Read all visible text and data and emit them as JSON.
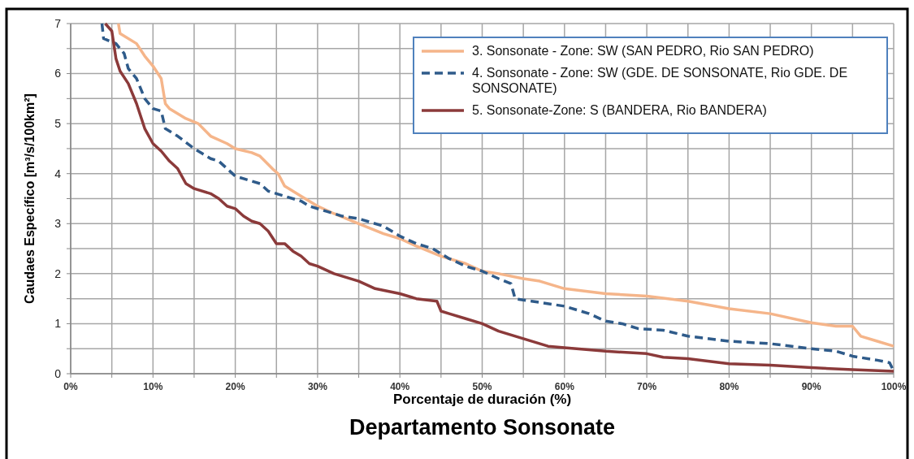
{
  "chart_data": {
    "type": "line",
    "title": "Departamento Sonsonate",
    "xlabel": "Porcentaje de duración (%)",
    "ylabel": "Caudaes Específico [m³/s/100km²]",
    "xlim": [
      0,
      100
    ],
    "ylim": [
      0,
      7
    ],
    "xticks": [
      {
        "value": 0,
        "label": "0%"
      },
      {
        "value": 5,
        "label": null
      },
      {
        "value": 10,
        "label": "10%"
      },
      {
        "value": 15,
        "label": null
      },
      {
        "value": 20,
        "label": "20%"
      },
      {
        "value": 25,
        "label": null
      },
      {
        "value": 30,
        "label": "30%"
      },
      {
        "value": 35,
        "label": null
      },
      {
        "value": 40,
        "label": "40%"
      },
      {
        "value": 45,
        "label": null
      },
      {
        "value": 50,
        "label": "50%"
      },
      {
        "value": 55,
        "label": null
      },
      {
        "value": 60,
        "label": "60%"
      },
      {
        "value": 65,
        "label": null
      },
      {
        "value": 70,
        "label": "70%"
      },
      {
        "value": 75,
        "label": null
      },
      {
        "value": 80,
        "label": "80%"
      },
      {
        "value": 85,
        "label": null
      },
      {
        "value": 90,
        "label": "90%"
      },
      {
        "value": 95,
        "label": null
      },
      {
        "value": 100,
        "label": "100%"
      }
    ],
    "yticks": [
      0,
      {
        "value": 0.5,
        "label": null
      },
      1,
      {
        "value": 1.5,
        "label": null
      },
      2,
      {
        "value": 2.5,
        "label": null
      },
      3,
      {
        "value": 3.5,
        "label": null
      },
      4,
      {
        "value": 4.5,
        "label": null
      },
      5,
      {
        "value": 5.5,
        "label": null
      },
      6,
      {
        "value": 6.5,
        "label": null
      },
      7
    ],
    "grid": true,
    "legend": "top right",
    "marker": "none",
    "series": [
      {
        "name": "3. Sonsonate - Zone: SW (SAN PEDRO, Rio SAN PEDRO)",
        "color": "#f5b58a",
        "line_style": "solid",
        "x": [
          5.8,
          6,
          8,
          9,
          10,
          11,
          11.5,
          12,
          14,
          15.5,
          17,
          19,
          20,
          22,
          23,
          24.5,
          25.2,
          26,
          28,
          30,
          32,
          35,
          38,
          40,
          42,
          45,
          48,
          50,
          52,
          55,
          57,
          60,
          65,
          70,
          75,
          80,
          85,
          90,
          93,
          95,
          96,
          98,
          100
        ],
        "values": [
          7,
          6.8,
          6.6,
          6.35,
          6.15,
          5.9,
          5.4,
          5.3,
          5.1,
          5,
          4.75,
          4.6,
          4.5,
          4.42,
          4.35,
          4.1,
          4,
          3.75,
          3.55,
          3.35,
          3.2,
          3,
          2.8,
          2.7,
          2.55,
          2.35,
          2.2,
          2.05,
          2,
          1.9,
          1.85,
          1.7,
          1.6,
          1.55,
          1.45,
          1.3,
          1.2,
          1.02,
          0.95,
          0.95,
          0.75,
          0.65,
          0.55
        ]
      },
      {
        "name": "4. Sonsonate - Zone: SW (GDE. DE SONSONATE,  Rio GDE. DE SONSONATE)",
        "color": "#2f5b8a",
        "line_style": "dashed",
        "x": [
          3.8,
          4,
          5.5,
          6.5,
          7,
          8,
          9,
          10,
          11,
          11.5,
          13,
          15,
          16,
          17,
          18,
          19,
          20,
          21,
          23,
          24,
          25,
          28,
          29,
          31,
          33,
          35,
          38,
          40,
          42,
          44,
          46,
          48,
          50,
          52,
          53.5,
          54,
          56,
          60,
          63,
          65,
          67,
          69,
          72,
          75,
          80,
          85,
          90,
          93,
          95,
          98,
          99.5,
          100
        ],
        "values": [
          7,
          6.7,
          6.6,
          6.4,
          6.1,
          5.9,
          5.5,
          5.3,
          5.25,
          4.9,
          4.75,
          4.5,
          4.4,
          4.3,
          4.25,
          4.1,
          3.95,
          3.9,
          3.8,
          3.65,
          3.6,
          3.45,
          3.35,
          3.25,
          3.15,
          3.1,
          2.95,
          2.75,
          2.6,
          2.5,
          2.3,
          2.15,
          2.05,
          1.9,
          1.8,
          1.5,
          1.45,
          1.35,
          1.2,
          1.05,
          1,
          0.9,
          0.87,
          0.75,
          0.65,
          0.6,
          0.5,
          0.45,
          0.35,
          0.27,
          0.22,
          0.05
        ]
      },
      {
        "name": "5. Sonsonate-Zone: S (BANDERA, Rio BANDERA)",
        "color": "#8b3a3a",
        "line_style": "solid",
        "x": [
          4.2,
          5,
          5.5,
          6,
          7,
          8,
          9,
          10,
          11,
          12,
          13,
          14,
          15,
          17,
          18,
          19,
          20,
          21,
          22,
          23,
          24,
          25,
          26,
          27,
          28,
          29,
          30,
          32,
          35,
          37,
          40,
          42,
          44.5,
          45,
          46,
          48,
          50,
          52,
          55,
          58,
          60,
          65,
          70,
          72,
          75,
          80,
          85,
          90,
          95,
          100
        ],
        "values": [
          7,
          6.85,
          6.3,
          6.05,
          5.8,
          5.4,
          4.9,
          4.6,
          4.45,
          4.25,
          4.1,
          3.8,
          3.7,
          3.6,
          3.5,
          3.35,
          3.3,
          3.15,
          3.05,
          3,
          2.85,
          2.6,
          2.6,
          2.45,
          2.35,
          2.2,
          2.15,
          2,
          1.85,
          1.7,
          1.6,
          1.5,
          1.45,
          1.25,
          1.2,
          1.1,
          1,
          0.85,
          0.7,
          0.55,
          0.52,
          0.45,
          0.4,
          0.33,
          0.3,
          0.2,
          0.17,
          0.12,
          0.08,
          0.05
        ]
      }
    ]
  }
}
